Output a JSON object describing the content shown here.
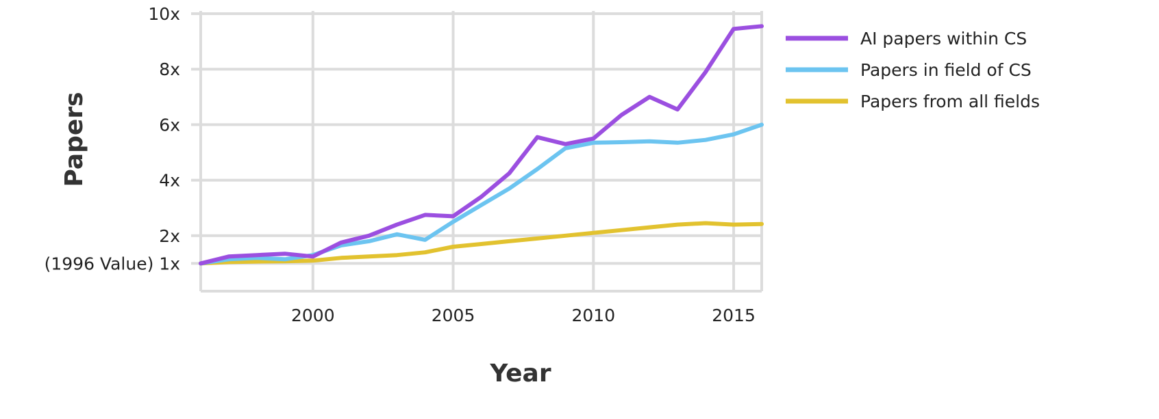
{
  "chart_data": {
    "type": "line",
    "xlabel": "Year",
    "ylabel": "Papers",
    "xlim": [
      1996,
      2016
    ],
    "ylim": [
      0,
      10
    ],
    "grid": true,
    "legend_position": "right",
    "x_ticks": [
      {
        "value": 2000,
        "label": "2000"
      },
      {
        "value": 2005,
        "label": "2005"
      },
      {
        "value": 2010,
        "label": "2010"
      },
      {
        "value": 2015,
        "label": "2015"
      }
    ],
    "y_ticks": [
      {
        "value": 1,
        "label": "(1996 Value) 1x"
      },
      {
        "value": 2,
        "label": "2x"
      },
      {
        "value": 4,
        "label": "4x"
      },
      {
        "value": 6,
        "label": "6x"
      },
      {
        "value": 8,
        "label": "8x"
      },
      {
        "value": 10,
        "label": "10x"
      }
    ],
    "x": [
      1996,
      1997,
      1998,
      1999,
      2000,
      2001,
      2002,
      2003,
      2004,
      2005,
      2006,
      2007,
      2008,
      2009,
      2010,
      2011,
      2012,
      2013,
      2014,
      2015,
      2016
    ],
    "series": [
      {
        "name": "AI papers within CS",
        "color": "#9b4fe0",
        "values": [
          1.0,
          1.25,
          1.3,
          1.35,
          1.25,
          1.75,
          2.0,
          2.4,
          2.75,
          2.7,
          3.4,
          4.25,
          5.55,
          5.3,
          5.5,
          6.35,
          7.0,
          6.55,
          7.9,
          9.45,
          9.55
        ]
      },
      {
        "name": "Papers in field of CS",
        "color": "#6cc4f0",
        "values": [
          1.0,
          1.15,
          1.2,
          1.15,
          1.3,
          1.65,
          1.8,
          2.05,
          1.85,
          2.5,
          3.1,
          3.7,
          4.4,
          5.15,
          5.35,
          5.37,
          5.4,
          5.35,
          5.45,
          5.65,
          6.0
        ]
      },
      {
        "name": "Papers from all fields",
        "color": "#e2c22f",
        "values": [
          1.0,
          1.05,
          1.07,
          1.08,
          1.1,
          1.2,
          1.25,
          1.3,
          1.4,
          1.6,
          1.7,
          1.8,
          1.9,
          2.0,
          2.1,
          2.2,
          2.3,
          2.4,
          2.45,
          2.4,
          2.42
        ]
      }
    ]
  }
}
